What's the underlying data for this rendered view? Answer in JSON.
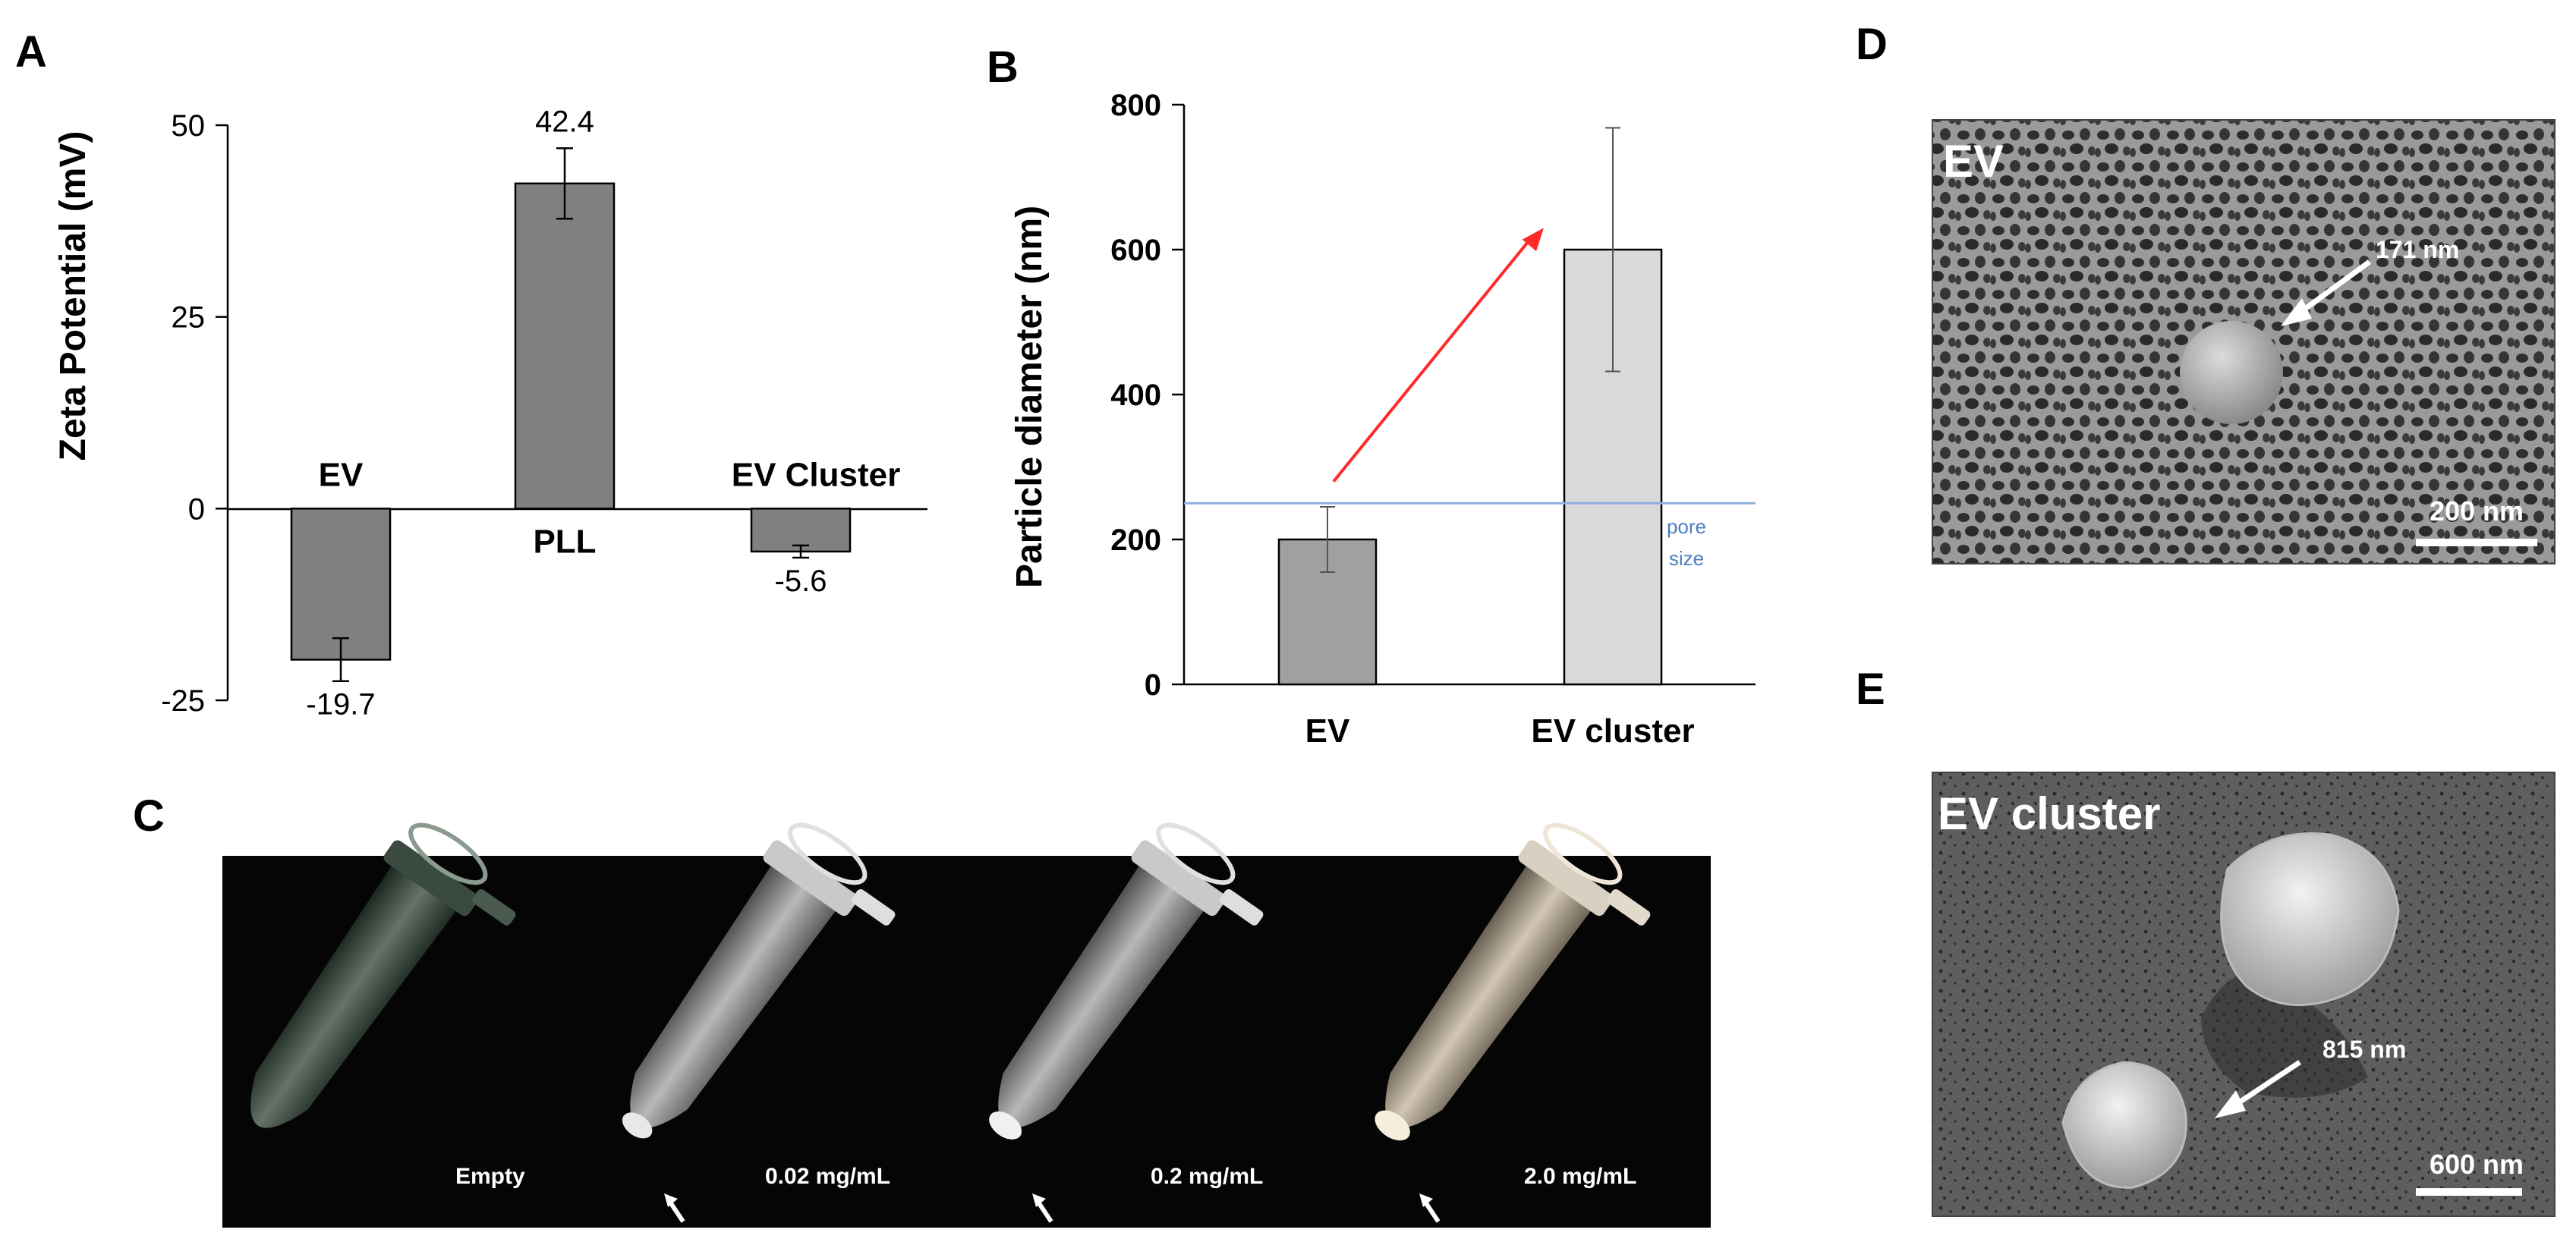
{
  "panels": {
    "a": "A",
    "b": "B",
    "c": "C",
    "d": "D",
    "e": "E"
  },
  "chart_data": [
    {
      "type": "bar",
      "panel": "A",
      "ylabel": "Zeta Potential (mV)",
      "ylim": [
        -25,
        50
      ],
      "yticks": [
        "-25",
        "0",
        "25",
        "50"
      ],
      "categories": [
        "EV",
        "PLL",
        "EV Cluster"
      ],
      "values": [
        -19.7,
        42.4,
        -5.6
      ],
      "value_labels": [
        "-19.7",
        "42.4",
        "-5.6"
      ],
      "errors": [
        2.8,
        4.6,
        0.8
      ],
      "bar_color": "#808080"
    },
    {
      "type": "bar",
      "panel": "B",
      "ylabel": "Particle diameter (nm)",
      "ylim": [
        0,
        800
      ],
      "yticks": [
        "0",
        "200",
        "400",
        "600",
        "800"
      ],
      "categories": [
        "EV",
        "EV cluster"
      ],
      "values": [
        200,
        600
      ],
      "errors": [
        45,
        168
      ],
      "bar_colors": [
        "#a0a0a0",
        "#d9d9d9"
      ],
      "reference_line": {
        "value": 250,
        "label_line1": "pore",
        "label_line2": "size",
        "color": "#8fb0dc"
      },
      "arrow_color": "#ff2a2a"
    }
  ],
  "photo_c": {
    "labels": [
      "Empty",
      "0.02 mg/mL",
      "0.2 mg/mL",
      "2.0 mg/mL"
    ]
  },
  "sem_d": {
    "title": "EV",
    "annotation": "171 nm",
    "scale": "200 nm"
  },
  "sem_e": {
    "title": "EV cluster",
    "annotation": "815 nm",
    "scale": "600 nm"
  }
}
